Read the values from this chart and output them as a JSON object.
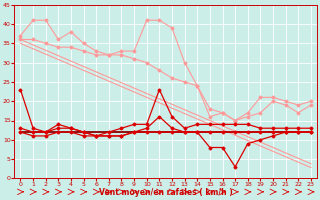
{
  "x": [
    0,
    1,
    2,
    3,
    4,
    5,
    6,
    7,
    8,
    9,
    10,
    11,
    12,
    13,
    14,
    15,
    16,
    17,
    18,
    19,
    20,
    21,
    22,
    23
  ],
  "pink1": [
    37,
    41,
    41,
    36,
    38,
    35,
    33,
    32,
    33,
    33,
    41,
    41,
    39,
    30,
    24,
    18,
    17,
    15,
    17,
    21,
    21,
    20,
    19,
    20
  ],
  "pink2": [
    36,
    36,
    35,
    34,
    34,
    33,
    32,
    32,
    32,
    31,
    30,
    28,
    26,
    25,
    24,
    16,
    17,
    15,
    16,
    17,
    20,
    19,
    17,
    19
  ],
  "pink3_straight": [
    36,
    34.6,
    33.2,
    31.8,
    30.4,
    29,
    27.6,
    26.2,
    24.8,
    23.4,
    22,
    20.6,
    19.2,
    17.8,
    16.4,
    15,
    13.6,
    12.2,
    10.8,
    9.4,
    8,
    6.6,
    5.2,
    3.8
  ],
  "pink4_straight": [
    35,
    33.6,
    32.2,
    30.8,
    29.4,
    28,
    26.6,
    25.2,
    23.8,
    22.4,
    21,
    19.6,
    18.2,
    16.8,
    15.4,
    14,
    12.6,
    11.2,
    9.8,
    8.4,
    7,
    5.6,
    4.2,
    2.8
  ],
  "red1": [
    23,
    13,
    12,
    14,
    13,
    12,
    11,
    12,
    13,
    14,
    14,
    23,
    16,
    13,
    14,
    14,
    14,
    14,
    14,
    13,
    13,
    13,
    13,
    13
  ],
  "red2": [
    13,
    12,
    12,
    13,
    13,
    12,
    11,
    11,
    11,
    12,
    12,
    12,
    12,
    12,
    12,
    12,
    12,
    12,
    12,
    12,
    12,
    12,
    12,
    12
  ],
  "red3": [
    12,
    11,
    11,
    12,
    12,
    11,
    11,
    11,
    11,
    12,
    13,
    16,
    13,
    12,
    12,
    8,
    8,
    3,
    9,
    10,
    11,
    12,
    12,
    12
  ],
  "dark_line": [
    12,
    12,
    12,
    12,
    12,
    12,
    12,
    12,
    12,
    12,
    12,
    12,
    12,
    12,
    12,
    12,
    12,
    12,
    12,
    12,
    12,
    12,
    12,
    12
  ],
  "ylim": [
    0,
    45
  ],
  "xlim_min": -0.5,
  "xlim_max": 23.5,
  "yticks": [
    0,
    5,
    10,
    15,
    20,
    25,
    30,
    35,
    40,
    45
  ],
  "xticks": [
    0,
    1,
    2,
    3,
    4,
    5,
    6,
    7,
    8,
    9,
    10,
    11,
    12,
    13,
    14,
    15,
    16,
    17,
    18,
    19,
    20,
    21,
    22,
    23
  ],
  "xlabel": "Vent moyen/en rafales ( km/h )",
  "bg_color": "#cceee8",
  "grid_color": "#ffffff",
  "pink_color": "#ff9999",
  "red_color": "#dd0000",
  "dark_red_color": "#880000",
  "tick_color": "#cc0000",
  "label_color": "#cc0000"
}
